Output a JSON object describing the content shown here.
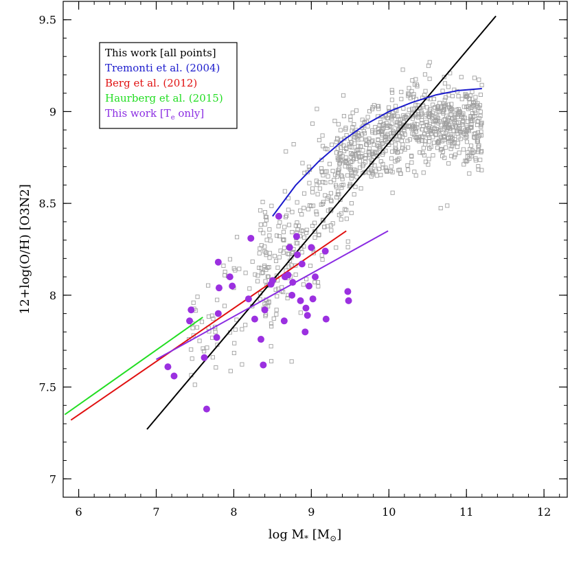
{
  "chart_data": {
    "type": "scatter",
    "title": "",
    "xlabel": "log M* [M⊙]",
    "xlabel_main": "log M",
    "xlabel_sub": "*",
    "xlabel_unit_open": " [M",
    "xlabel_unit_sub": "⊙",
    "xlabel_unit_close": "]",
    "ylabel": "12+log(O/H) [O3N2]",
    "xlim": [
      5.8,
      12.3
    ],
    "ylim": [
      6.9,
      9.6
    ],
    "xticks": [
      6,
      7,
      8,
      9,
      10,
      11,
      12
    ],
    "xtick_labels": [
      "6",
      "7",
      "8",
      "9",
      "10",
      "11",
      "12"
    ],
    "yticks": [
      7,
      7.5,
      8,
      8.5,
      9,
      9.5
    ],
    "ytick_labels": [
      "7",
      "7.5",
      "8",
      "8.5",
      "9",
      "9.5"
    ],
    "grid": false,
    "legend_position": "top-left",
    "legend": [
      {
        "text": "This work [all points]",
        "color": "#000000"
      },
      {
        "text": "Tremonti et al. (2004)",
        "color": "#1a1acc"
      },
      {
        "text": "Berg et al. (2012)",
        "color": "#e01010"
      },
      {
        "text": "Haurberg et al. (2015)",
        "color": "#22dd22"
      },
      {
        "text_main": "This work [T",
        "text_sub": "e",
        "text_end": " only]",
        "color": "#8a2be2"
      }
    ],
    "background_points_color": "#a0a0a0",
    "background_points_note": "~1000 grey open squares concentrated along the mass-metallicity relation; densest near logM 9.5-10.8, O/H 8.6-9.1",
    "te_points_color": "#9b30e0",
    "te_points": [
      {
        "x": 7.15,
        "y": 7.61
      },
      {
        "x": 7.23,
        "y": 7.56
      },
      {
        "x": 7.43,
        "y": 7.86
      },
      {
        "x": 7.45,
        "y": 7.92
      },
      {
        "x": 7.62,
        "y": 7.66
      },
      {
        "x": 7.65,
        "y": 7.38
      },
      {
        "x": 7.78,
        "y": 7.77
      },
      {
        "x": 7.8,
        "y": 7.9
      },
      {
        "x": 7.8,
        "y": 8.18
      },
      {
        "x": 7.81,
        "y": 8.04
      },
      {
        "x": 7.95,
        "y": 8.1
      },
      {
        "x": 7.98,
        "y": 8.05
      },
      {
        "x": 8.19,
        "y": 7.98
      },
      {
        "x": 8.22,
        "y": 8.31
      },
      {
        "x": 8.27,
        "y": 7.87
      },
      {
        "x": 8.35,
        "y": 7.76
      },
      {
        "x": 8.38,
        "y": 7.62
      },
      {
        "x": 8.4,
        "y": 7.92
      },
      {
        "x": 8.48,
        "y": 8.06
      },
      {
        "x": 8.5,
        "y": 8.08
      },
      {
        "x": 8.58,
        "y": 8.43
      },
      {
        "x": 8.65,
        "y": 7.86
      },
      {
        "x": 8.66,
        "y": 8.1
      },
      {
        "x": 8.7,
        "y": 8.11
      },
      {
        "x": 8.72,
        "y": 8.26
      },
      {
        "x": 8.75,
        "y": 8.0
      },
      {
        "x": 8.76,
        "y": 8.07
      },
      {
        "x": 8.81,
        "y": 8.32
      },
      {
        "x": 8.82,
        "y": 8.22
      },
      {
        "x": 8.86,
        "y": 7.97
      },
      {
        "x": 8.88,
        "y": 8.17
      },
      {
        "x": 8.92,
        "y": 7.8
      },
      {
        "x": 8.93,
        "y": 7.93
      },
      {
        "x": 8.95,
        "y": 7.89
      },
      {
        "x": 8.97,
        "y": 8.05
      },
      {
        "x": 9.0,
        "y": 8.26
      },
      {
        "x": 9.02,
        "y": 7.98
      },
      {
        "x": 9.05,
        "y": 8.1
      },
      {
        "x": 9.18,
        "y": 8.24
      },
      {
        "x": 9.19,
        "y": 7.87
      },
      {
        "x": 9.47,
        "y": 8.02
      },
      {
        "x": 9.48,
        "y": 7.97
      }
    ],
    "series": [
      {
        "name": "This work [all points]",
        "color": "#000000",
        "type": "line",
        "x": [
          6.88,
          11.38
        ],
        "y": [
          7.27,
          9.52
        ]
      },
      {
        "name": "Tremonti et al. (2004)",
        "color": "#1a1acc",
        "type": "curve",
        "x": [
          8.5,
          8.8,
          9.1,
          9.4,
          9.7,
          10.0,
          10.3,
          10.6,
          10.9,
          11.2
        ],
        "y": [
          8.43,
          8.6,
          8.73,
          8.84,
          8.93,
          9.0,
          9.05,
          9.09,
          9.115,
          9.125
        ]
      },
      {
        "name": "Berg et al. (2012)",
        "color": "#e01010",
        "type": "line",
        "x": [
          5.9,
          9.45
        ],
        "y": [
          7.32,
          8.35
        ]
      },
      {
        "name": "Haurberg et al. (2015)",
        "color": "#22dd22",
        "type": "line",
        "x": [
          5.82,
          7.6
        ],
        "y": [
          7.35,
          7.88
        ]
      },
      {
        "name": "This work [Te only]",
        "color": "#8a2be2",
        "type": "line",
        "x": [
          7.0,
          9.99
        ],
        "y": [
          7.65,
          8.35
        ]
      }
    ]
  }
}
